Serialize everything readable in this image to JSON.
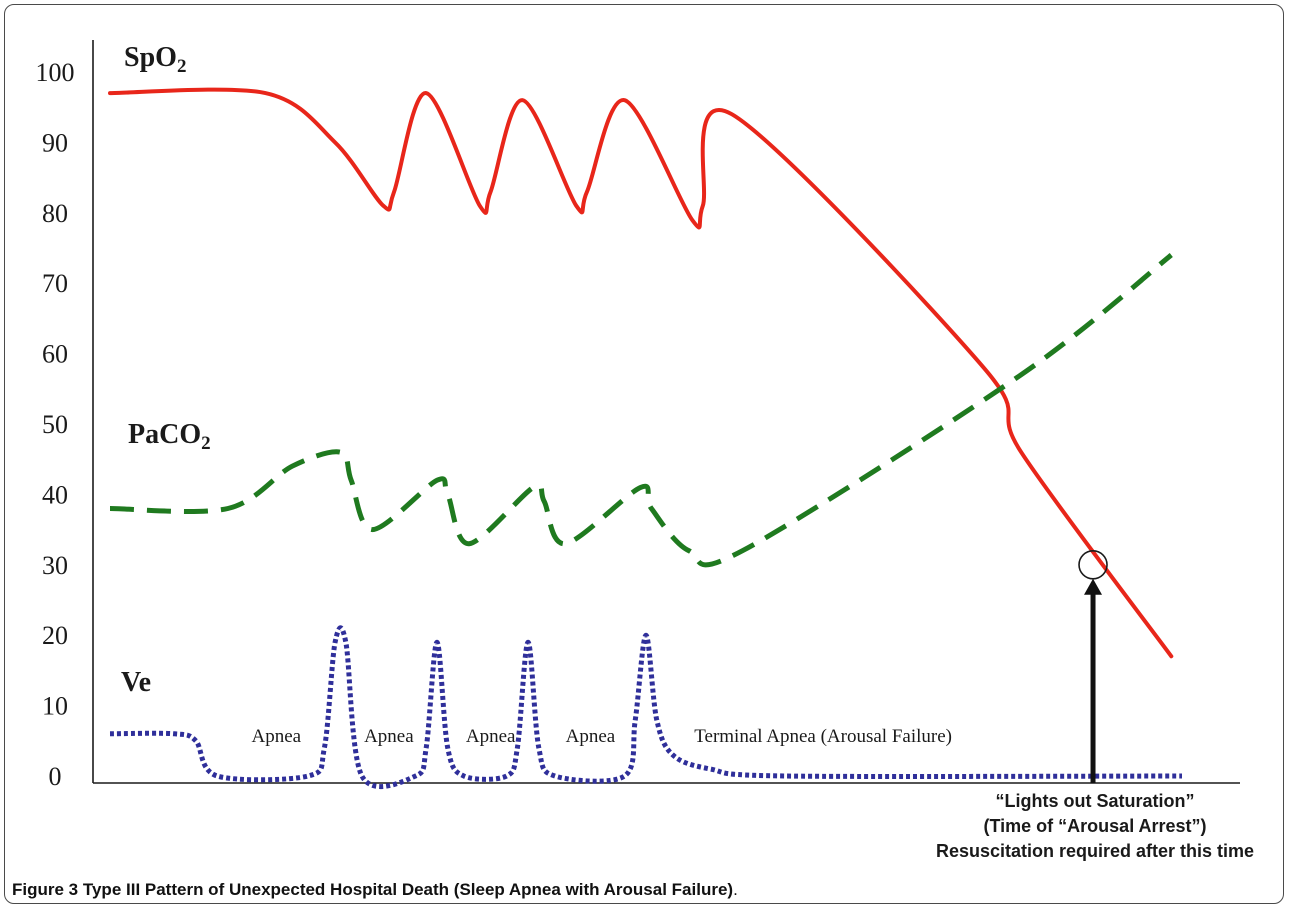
{
  "chart_data": {
    "type": "line",
    "title": "",
    "xlabel": "",
    "ylabel": "",
    "ylim": [
      0,
      100
    ],
    "xlim": [
      0,
      100
    ],
    "grid": false,
    "legend": "none",
    "y_ticks": [
      "100",
      "90",
      "80",
      "70",
      "60",
      "50",
      "40",
      "30",
      "20",
      "10",
      "0"
    ],
    "y_tick_values": [
      100,
      90,
      80,
      70,
      60,
      50,
      40,
      30,
      20,
      10,
      0
    ],
    "series": [
      {
        "name": "SpO2",
        "label_main": "SpO",
        "label_sub": "2",
        "style": "solid",
        "color": "#e8261a",
        "x": [
          0,
          14.5,
          21,
          25.5,
          26.5,
          29.5,
          34.5,
          35.5,
          38.5,
          43.5,
          44.5,
          48,
          54.3,
          55.3,
          58,
          81.5,
          85,
          99
        ],
        "y": [
          97,
          97,
          90,
          81,
          83,
          97,
          81,
          83,
          96,
          81,
          83,
          96,
          79,
          81,
          94,
          58,
          46,
          17
        ]
      },
      {
        "name": "PaCO2",
        "label_main": "PaCO",
        "label_sub": "2",
        "style": "dashed",
        "color": "#1f7a1f",
        "x": [
          0,
          11,
          17,
          21.5,
          22.5,
          24.5,
          30.5,
          31.5,
          33.5,
          39.5,
          40.5,
          42.5,
          49.5,
          50.5,
          54,
          59,
          85,
          99
        ],
        "y": [
          38,
          38,
          44,
          46,
          42,
          35,
          42,
          40,
          33,
          41,
          39,
          33,
          41,
          38,
          32,
          32,
          57,
          74
        ]
      },
      {
        "name": "Ve",
        "label_main": "Ve",
        "label_sub": "",
        "style": "dotted",
        "color": "#2f2f9a",
        "x": [
          0,
          6,
          8,
          10,
          18.5,
          20,
          21,
          22,
          23.5,
          28.5,
          29.5,
          30.5,
          31.5,
          33,
          37,
          38,
          39,
          40,
          41.5,
          48,
          49,
          50,
          51,
          52.5,
          56,
          63,
          100
        ],
        "y": [
          6,
          6,
          5,
          0,
          0,
          4,
          19,
          19,
          0,
          0,
          4,
          19,
          4,
          0,
          0,
          4,
          19,
          4,
          0,
          0,
          8,
          20,
          8,
          3,
          1,
          0,
          0
        ]
      }
    ],
    "annotations": {
      "apnea_labels": [
        "Apnea",
        "Apnea",
        "Apnea",
        "Apnea",
        "Terminal Apnea (Arousal Failure)"
      ],
      "apnea_x": [
        13.2,
        23.7,
        33.2,
        42.5,
        54.5
      ],
      "apnea_y": 4.8,
      "marker_x": 91.7,
      "marker_y": 30,
      "arrow_note_lines": [
        "“Lights out Saturation”",
        "(Time of “Arousal Arrest”)",
        "Resuscitation required after this time"
      ]
    }
  },
  "caption": {
    "label": "Figure 3",
    "title": "Type III Pattern of Unexpected Hospital Death (Sleep Apnea with Arousal Failure)",
    "end": "."
  }
}
